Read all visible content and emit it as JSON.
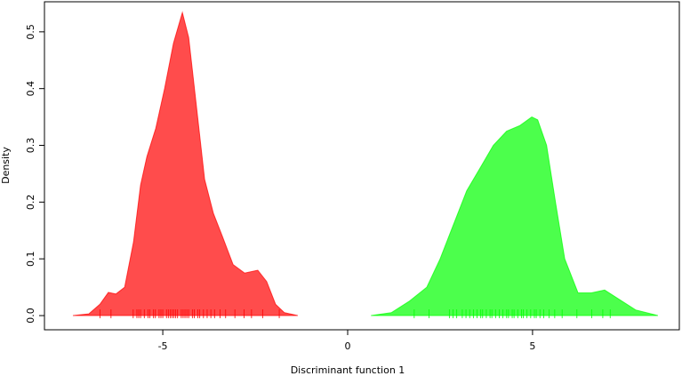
{
  "chart_data": {
    "type": "density",
    "xlabel": "Discriminant function 1",
    "ylabel": "Density",
    "xlim": [
      -8.2,
      8.97
    ],
    "ylim": [
      -0.025,
      0.553
    ],
    "xticks": [
      -5,
      0,
      5
    ],
    "yticks": [
      {
        "value": 0,
        "label": "0.0"
      },
      0.1,
      0.2,
      0.3,
      0.4,
      0.5
    ],
    "series": [
      {
        "color": "#ff0000",
        "x": [
          -7.43,
          -7.0,
          -6.7,
          -6.47,
          -6.27,
          -6.03,
          -5.79,
          -5.6,
          -5.43,
          -5.19,
          -4.95,
          -4.71,
          -4.47,
          -4.3,
          -4.11,
          -3.87,
          -3.63,
          -3.39,
          -3.1,
          -2.79,
          -2.43,
          -2.19,
          -1.95,
          -1.71,
          -1.35
        ],
        "values": [
          0,
          0.003,
          0.02,
          0.041,
          0.038,
          0.05,
          0.13,
          0.23,
          0.28,
          0.33,
          0.4,
          0.48,
          0.534,
          0.49,
          0.38,
          0.24,
          0.18,
          0.14,
          0.09,
          0.075,
          0.08,
          0.06,
          0.02,
          0.005,
          0
        ],
        "rug": [
          -6.7,
          -6.4,
          -5.8,
          -5.7,
          -5.65,
          -5.6,
          -5.5,
          -5.4,
          -5.35,
          -5.25,
          -5.2,
          -5.1,
          -5.05,
          -5.0,
          -4.9,
          -4.85,
          -4.8,
          -4.75,
          -4.7,
          -4.65,
          -4.6,
          -4.5,
          -4.45,
          -4.4,
          -4.35,
          -4.3,
          -4.2,
          -4.15,
          -4.05,
          -4.0,
          -3.9,
          -3.8,
          -3.7,
          -3.6,
          -3.45,
          -3.3,
          -3.05,
          -2.8,
          -2.6,
          -2.3,
          -1.85
        ]
      },
      {
        "color": "#00ff00",
        "x": [
          0.63,
          1.18,
          1.66,
          2.14,
          2.5,
          2.86,
          3.22,
          3.58,
          3.94,
          4.3,
          4.66,
          4.98,
          5.14,
          5.38,
          5.62,
          5.87,
          6.23,
          6.59,
          6.95,
          7.31,
          7.79,
          8.39
        ],
        "values": [
          0,
          0.005,
          0.025,
          0.05,
          0.1,
          0.16,
          0.22,
          0.26,
          0.3,
          0.325,
          0.335,
          0.35,
          0.345,
          0.3,
          0.2,
          0.1,
          0.04,
          0.04,
          0.045,
          0.03,
          0.01,
          0
        ],
        "rug": [
          1.8,
          2.2,
          2.75,
          2.85,
          2.95,
          3.1,
          3.2,
          3.3,
          3.4,
          3.5,
          3.6,
          3.65,
          3.75,
          3.85,
          3.9,
          4.0,
          4.1,
          4.2,
          4.3,
          4.35,
          4.45,
          4.5,
          4.6,
          4.7,
          4.75,
          4.85,
          4.95,
          5.05,
          5.1,
          5.2,
          5.3,
          5.45,
          5.6,
          5.8,
          6.2,
          6.6,
          6.9,
          7.1
        ]
      }
    ]
  }
}
